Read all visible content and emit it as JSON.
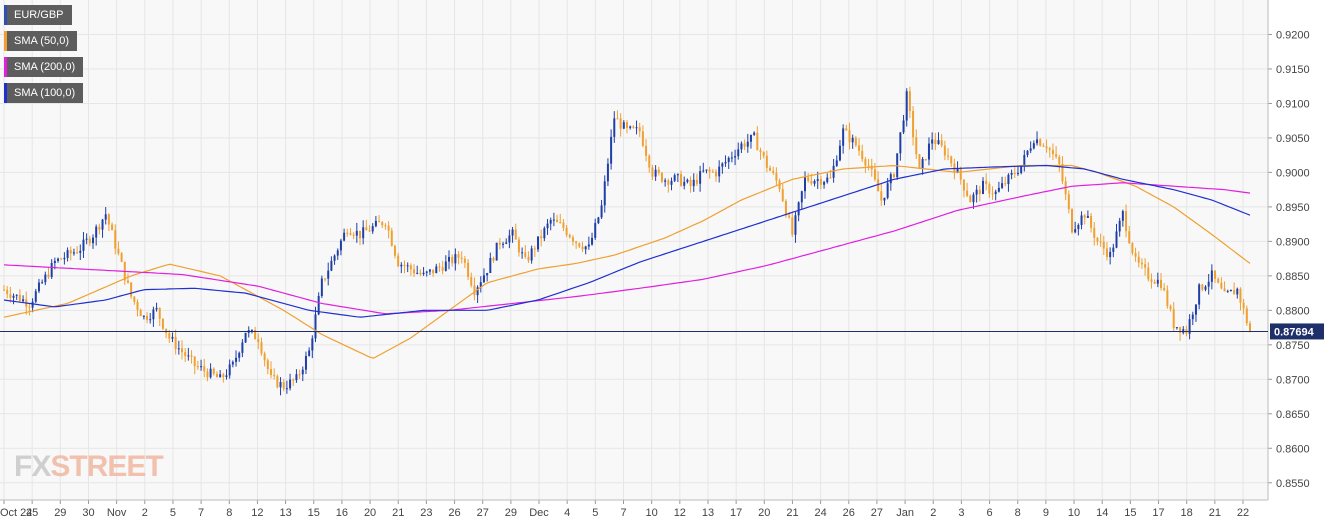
{
  "chart_data": {
    "type": "candlestick",
    "symbol": "EUR/GBP",
    "y_axis_side": "right",
    "ylim": [
      0.8525,
      0.925
    ],
    "y_ticks": [
      "0.9200",
      "0.9150",
      "0.9100",
      "0.9050",
      "0.9000",
      "0.8950",
      "0.8900",
      "0.8850",
      "0.8800",
      "0.8750",
      "0.8700",
      "0.8650",
      "0.8600",
      "0.8550"
    ],
    "x_ticks": [
      "Oct 24",
      "25",
      "29",
      "30",
      "Nov",
      "2",
      "5",
      "7",
      "8",
      "12",
      "13",
      "15",
      "16",
      "20",
      "21",
      "23",
      "26",
      "27",
      "29",
      "Dec",
      "4",
      "5",
      "7",
      "10",
      "12",
      "13",
      "17",
      "20",
      "21",
      "24",
      "26",
      "27",
      "Jan",
      "2",
      "3",
      "6",
      "8",
      "9",
      "10",
      "14",
      "15",
      "17",
      "18",
      "21",
      "22"
    ],
    "last_price": "0.87694",
    "last_price_value": 0.87694,
    "grid": true,
    "legend_position": "top-left",
    "series": [
      {
        "name": "EUR/GBP",
        "type": "candles",
        "close_path": [
          [
            0,
            0.883
          ],
          [
            1,
            0.882
          ],
          [
            2,
            0.881
          ],
          [
            3,
            0.884
          ],
          [
            4,
            0.887
          ],
          [
            5,
            0.888
          ],
          [
            6,
            0.889
          ],
          [
            7,
            0.891
          ],
          [
            8,
            0.894
          ],
          [
            9,
            0.888
          ],
          [
            10,
            0.882
          ],
          [
            11,
            0.879
          ],
          [
            12,
            0.88
          ],
          [
            13,
            0.876
          ],
          [
            14,
            0.874
          ],
          [
            15,
            0.872
          ],
          [
            16,
            0.871
          ],
          [
            17,
            0.87
          ],
          [
            18,
            0.872
          ],
          [
            19,
            0.877
          ],
          [
            20,
            0.876
          ],
          [
            21,
            0.87
          ],
          [
            22,
            0.869
          ],
          [
            23,
            0.87
          ],
          [
            24,
            0.874
          ],
          [
            25,
            0.884
          ],
          [
            26,
            0.888
          ],
          [
            27,
            0.892
          ],
          [
            28,
            0.891
          ],
          [
            29,
            0.892
          ],
          [
            30,
            0.893
          ],
          [
            31,
            0.887
          ],
          [
            32,
            0.886
          ],
          [
            33,
            0.885
          ],
          [
            34,
            0.886
          ],
          [
            35,
            0.887
          ],
          [
            36,
            0.888
          ],
          [
            37,
            0.883
          ],
          [
            38,
            0.886
          ],
          [
            39,
            0.89
          ],
          [
            40,
            0.891
          ],
          [
            41,
            0.887
          ],
          [
            42,
            0.89
          ],
          [
            43,
            0.893
          ],
          [
            44,
            0.892
          ],
          [
            45,
            0.89
          ],
          [
            46,
            0.889
          ],
          [
            47,
            0.895
          ],
          [
            48,
            0.908
          ],
          [
            49,
            0.906
          ],
          [
            50,
            0.906
          ],
          [
            51,
            0.9
          ],
          [
            52,
            0.899
          ],
          [
            53,
            0.899
          ],
          [
            54,
            0.898
          ],
          [
            55,
            0.9
          ],
          [
            56,
            0.9
          ],
          [
            57,
            0.902
          ],
          [
            58,
            0.904
          ],
          [
            59,
            0.905
          ],
          [
            60,
            0.901
          ],
          [
            61,
            0.898
          ],
          [
            62,
            0.891
          ],
          [
            63,
            0.899
          ],
          [
            64,
            0.899
          ],
          [
            65,
            0.899
          ],
          [
            66,
            0.906
          ],
          [
            67,
            0.904
          ],
          [
            68,
            0.901
          ],
          [
            69,
            0.896
          ],
          [
            70,
            0.9
          ],
          [
            71,
            0.911
          ],
          [
            72,
            0.9
          ],
          [
            73,
            0.905
          ],
          [
            74,
            0.903
          ],
          [
            75,
            0.9
          ],
          [
            76,
            0.896
          ],
          [
            77,
            0.898
          ],
          [
            78,
            0.897
          ],
          [
            79,
            0.899
          ],
          [
            80,
            0.901
          ],
          [
            81,
            0.905
          ],
          [
            82,
            0.904
          ],
          [
            83,
            0.901
          ],
          [
            84,
            0.892
          ],
          [
            85,
            0.894
          ],
          [
            86,
            0.89
          ],
          [
            87,
            0.888
          ],
          [
            88,
            0.894
          ],
          [
            89,
            0.887
          ],
          [
            90,
            0.885
          ],
          [
            91,
            0.884
          ],
          [
            92,
            0.878
          ],
          [
            93,
            0.877
          ],
          [
            94,
            0.883
          ],
          [
            95,
            0.885
          ],
          [
            96,
            0.882
          ],
          [
            97,
            0.883
          ],
          [
            98,
            0.8769
          ]
        ]
      },
      {
        "name": "SMA (50,0)",
        "color": "#f0a030",
        "path": [
          [
            0,
            0.879
          ],
          [
            5,
            0.881
          ],
          [
            10,
            0.885
          ],
          [
            13,
            0.8867
          ],
          [
            17,
            0.885
          ],
          [
            22,
            0.88
          ],
          [
            25,
            0.8765
          ],
          [
            29,
            0.873
          ],
          [
            32,
            0.876
          ],
          [
            35,
            0.88
          ],
          [
            38,
            0.884
          ],
          [
            42,
            0.886
          ],
          [
            45,
            0.8868
          ],
          [
            48,
            0.888
          ],
          [
            52,
            0.8905
          ],
          [
            55,
            0.893
          ],
          [
            58,
            0.896
          ],
          [
            62,
            0.899
          ],
          [
            66,
            0.9005
          ],
          [
            70,
            0.901
          ],
          [
            75,
            0.9
          ],
          [
            80,
            0.901
          ],
          [
            84,
            0.901
          ],
          [
            86,
            0.9
          ],
          [
            89,
            0.898
          ],
          [
            92,
            0.895
          ],
          [
            95,
            0.891
          ],
          [
            98,
            0.8868
          ]
        ]
      },
      {
        "name": "SMA (200,0)",
        "color": "#e020e0",
        "path": [
          [
            0,
            0.8866
          ],
          [
            8,
            0.8858
          ],
          [
            14,
            0.8852
          ],
          [
            20,
            0.8835
          ],
          [
            25,
            0.881
          ],
          [
            30,
            0.8795
          ],
          [
            35,
            0.88
          ],
          [
            40,
            0.881
          ],
          [
            45,
            0.882
          ],
          [
            50,
            0.8832
          ],
          [
            55,
            0.8845
          ],
          [
            60,
            0.8865
          ],
          [
            65,
            0.889
          ],
          [
            70,
            0.8915
          ],
          [
            75,
            0.8945
          ],
          [
            80,
            0.8965
          ],
          [
            84,
            0.898
          ],
          [
            88,
            0.8985
          ],
          [
            92,
            0.898
          ],
          [
            96,
            0.8975
          ],
          [
            98,
            0.897
          ]
        ]
      },
      {
        "name": "SMA (100,0)",
        "color": "#2030d0",
        "path": [
          [
            0,
            0.8815
          ],
          [
            4,
            0.8805
          ],
          [
            8,
            0.8815
          ],
          [
            11,
            0.883
          ],
          [
            15,
            0.8832
          ],
          [
            19,
            0.8825
          ],
          [
            24,
            0.88
          ],
          [
            28,
            0.879
          ],
          [
            33,
            0.88
          ],
          [
            38,
            0.88
          ],
          [
            42,
            0.8815
          ],
          [
            46,
            0.884
          ],
          [
            50,
            0.887
          ],
          [
            55,
            0.89
          ],
          [
            60,
            0.893
          ],
          [
            65,
            0.896
          ],
          [
            70,
            0.899
          ],
          [
            74,
            0.9005
          ],
          [
            78,
            0.9008
          ],
          [
            82,
            0.901
          ],
          [
            85,
            0.9005
          ],
          [
            88,
            0.899
          ],
          [
            92,
            0.8975
          ],
          [
            95,
            0.896
          ],
          [
            98,
            0.8938
          ]
        ]
      }
    ]
  },
  "legend": [
    {
      "label": "EUR/GBP",
      "color": "#3050b0"
    },
    {
      "label": "SMA (50,0)",
      "color": "#f0a030"
    },
    {
      "label": "SMA (200,0)",
      "color": "#e020e0"
    },
    {
      "label": "SMA (100,0)",
      "color": "#2030d0"
    }
  ],
  "watermark": {
    "part1": "FX",
    "part2": "STREET"
  },
  "colors": {
    "up": "#1f3fa8",
    "down": "#f0a030",
    "price_line": "#1f2f6a",
    "grid": "#e6e6e6",
    "plot_bg": "#f8f8f8"
  }
}
